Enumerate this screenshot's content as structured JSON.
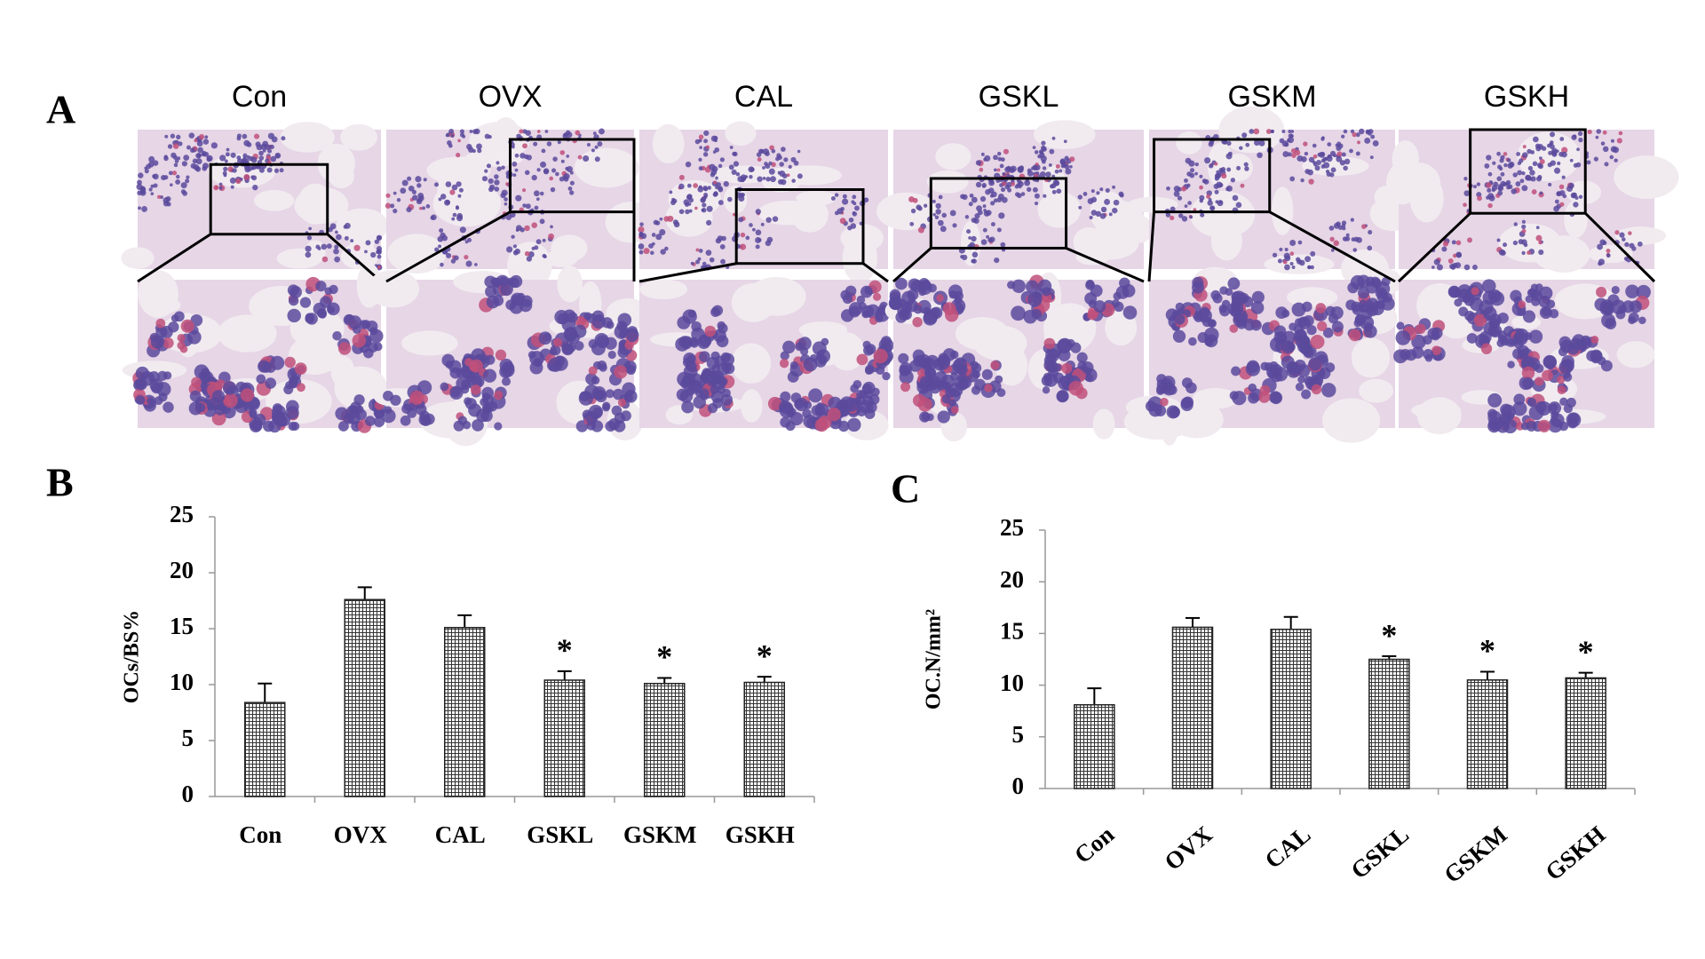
{
  "panel_a": {
    "label": "A",
    "groups": [
      "Con",
      "OVX",
      "CAL",
      "GSKL",
      "GSKM",
      "GSKH"
    ]
  },
  "chart_data": [
    {
      "type": "bar",
      "label": "B",
      "ylabel": "OCs/BS%",
      "categories": [
        "Con",
        "OVX",
        "CAL",
        "GSKL",
        "GSKM",
        "GSKH"
      ],
      "values": [
        8.4,
        17.6,
        15.1,
        10.4,
        10.1,
        10.2
      ],
      "errors": [
        1.7,
        1.1,
        1.1,
        0.8,
        0.5,
        0.5
      ],
      "annotations": [
        null,
        null,
        null,
        "*",
        "*",
        "*"
      ],
      "ylim": [
        0,
        25
      ],
      "yticks": [
        0,
        5,
        10,
        15,
        20,
        25
      ],
      "color": "#222222",
      "rotate_labels": false
    },
    {
      "type": "bar",
      "label": "C",
      "ylabel": "OC.N/mm²",
      "categories": [
        "Con",
        "OVX",
        "CAL",
        "GSKL",
        "GSKM",
        "GSKH"
      ],
      "values": [
        8.1,
        15.6,
        15.4,
        12.5,
        10.5,
        10.7
      ],
      "errors": [
        1.6,
        0.9,
        1.2,
        0.3,
        0.8,
        0.5
      ],
      "annotations": [
        null,
        null,
        null,
        "*",
        "*",
        "*"
      ],
      "ylim": [
        0,
        25
      ],
      "yticks": [
        0,
        5,
        10,
        15,
        20,
        25
      ],
      "color": "#222222",
      "rotate_labels": true
    }
  ]
}
